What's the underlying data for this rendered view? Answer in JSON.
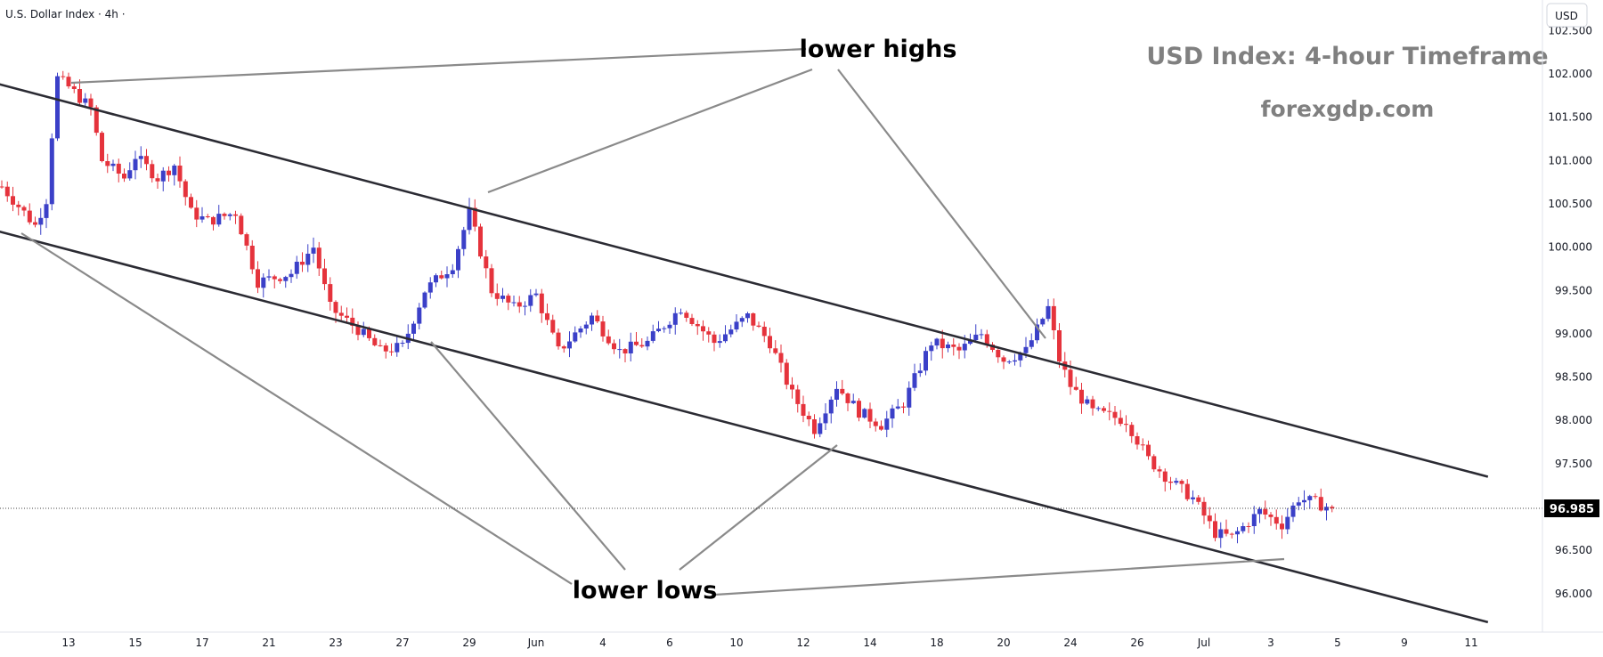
{
  "header": {
    "symbol": "U.S. Dollar Index · 4h ·",
    "currency_button": "USD"
  },
  "watermark": {
    "title": "USD Index: 4-hour Timeframe",
    "site": "forexgdp.com"
  },
  "annotations": {
    "highs_label": "lower highs",
    "lows_label": "lower lows"
  },
  "colors": {
    "up": "#3b40c8",
    "down": "#e5333c",
    "trendline": "#2b2b33",
    "pointer": "#8a8a8a",
    "last_price_bg": "#000000"
  },
  "icons": [
    "currency-button"
  ],
  "chart_data": {
    "type": "candlestick",
    "title": "",
    "xlabel": "",
    "ylabel": "",
    "ylim": [
      95.7,
      102.6
    ],
    "grid": false,
    "last_price": "96.985",
    "y_ticks": [
      "102.500",
      "102.000",
      "101.500",
      "101.000",
      "100.500",
      "100.000",
      "99.500",
      "99.000",
      "98.500",
      "98.000",
      "97.500",
      "97.000",
      "96.500",
      "96.000"
    ],
    "x_ticks": [
      {
        "label": "13",
        "t": 0
      },
      {
        "label": "15",
        "t": 12
      },
      {
        "label": "17",
        "t": 24
      },
      {
        "label": "21",
        "t": 36
      },
      {
        "label": "23",
        "t": 48
      },
      {
        "label": "27",
        "t": 60
      },
      {
        "label": "29",
        "t": 72
      },
      {
        "label": "Jun",
        "t": 84
      },
      {
        "label": "4",
        "t": 96
      },
      {
        "label": "6",
        "t": 108
      },
      {
        "label": "10",
        "t": 120
      },
      {
        "label": "12",
        "t": 132
      },
      {
        "label": "14",
        "t": 144
      },
      {
        "label": "18",
        "t": 156
      },
      {
        "label": "20",
        "t": 168
      },
      {
        "label": "24",
        "t": 180
      },
      {
        "label": "26",
        "t": 192
      },
      {
        "label": "Jul",
        "t": 204
      },
      {
        "label": "3",
        "t": 216
      },
      {
        "label": "5",
        "t": 228
      },
      {
        "label": "9",
        "t": 240
      },
      {
        "label": "11",
        "t": 252
      }
    ],
    "series": [
      {
        "name": "U.S. Dollar Index",
        "anchors": [
          {
            "t": -12,
            "p": 100.7
          },
          {
            "t": -6,
            "p": 100.25
          },
          {
            "t": -4,
            "p": 100.55
          },
          {
            "t": -3,
            "p": 101.3
          },
          {
            "t": -2,
            "p": 101.95
          },
          {
            "t": 0,
            "p": 101.85
          },
          {
            "t": 4,
            "p": 101.6
          },
          {
            "t": 6,
            "p": 101.0
          },
          {
            "t": 10,
            "p": 100.8
          },
          {
            "t": 12,
            "p": 101.05
          },
          {
            "t": 16,
            "p": 100.8
          },
          {
            "t": 19,
            "p": 100.95
          },
          {
            "t": 22,
            "p": 100.4
          },
          {
            "t": 25,
            "p": 100.3
          },
          {
            "t": 30,
            "p": 100.4
          },
          {
            "t": 34,
            "p": 99.6
          },
          {
            "t": 40,
            "p": 99.7
          },
          {
            "t": 44,
            "p": 100.0
          },
          {
            "t": 47,
            "p": 99.3
          },
          {
            "t": 52,
            "p": 99.05
          },
          {
            "t": 56,
            "p": 98.8
          },
          {
            "t": 60,
            "p": 98.85
          },
          {
            "t": 64,
            "p": 99.5
          },
          {
            "t": 69,
            "p": 99.8
          },
          {
            "t": 72,
            "p": 100.4
          },
          {
            "t": 76,
            "p": 99.5
          },
          {
            "t": 80,
            "p": 99.3
          },
          {
            "t": 84,
            "p": 99.45
          },
          {
            "t": 88,
            "p": 98.8
          },
          {
            "t": 94,
            "p": 99.2
          },
          {
            "t": 99,
            "p": 98.8
          },
          {
            "t": 104,
            "p": 98.9
          },
          {
            "t": 110,
            "p": 99.3
          },
          {
            "t": 116,
            "p": 98.9
          },
          {
            "t": 122,
            "p": 99.2
          },
          {
            "t": 126,
            "p": 98.9
          },
          {
            "t": 130,
            "p": 98.3
          },
          {
            "t": 134,
            "p": 97.9
          },
          {
            "t": 138,
            "p": 98.4
          },
          {
            "t": 142,
            "p": 98.1
          },
          {
            "t": 146,
            "p": 97.95
          },
          {
            "t": 150,
            "p": 98.2
          },
          {
            "t": 155,
            "p": 98.9
          },
          {
            "t": 160,
            "p": 98.8
          },
          {
            "t": 164,
            "p": 99.0
          },
          {
            "t": 168,
            "p": 98.7
          },
          {
            "t": 172,
            "p": 98.8
          },
          {
            "t": 176,
            "p": 99.3
          },
          {
            "t": 178,
            "p": 98.7
          },
          {
            "t": 180,
            "p": 98.4
          },
          {
            "t": 184,
            "p": 98.1
          },
          {
            "t": 190,
            "p": 98.0
          },
          {
            "t": 194,
            "p": 97.55
          },
          {
            "t": 198,
            "p": 97.3
          },
          {
            "t": 202,
            "p": 97.1
          },
          {
            "t": 206,
            "p": 96.7
          },
          {
            "t": 209,
            "p": 96.65
          },
          {
            "t": 214,
            "p": 96.95
          },
          {
            "t": 218,
            "p": 96.8
          },
          {
            "t": 221,
            "p": 97.1
          },
          {
            "t": 224,
            "p": 97.05
          },
          {
            "t": 227,
            "p": 96.985
          }
        ]
      },
      {
        "name": "upper channel",
        "points": [
          {
            "t": -19.5,
            "p": 102.0
          },
          {
            "t": 255,
            "p": 97.35
          }
        ]
      },
      {
        "name": "lower channel",
        "points": [
          {
            "t": -19.5,
            "p": 100.3
          },
          {
            "t": 255,
            "p": 95.67
          }
        ]
      }
    ]
  }
}
